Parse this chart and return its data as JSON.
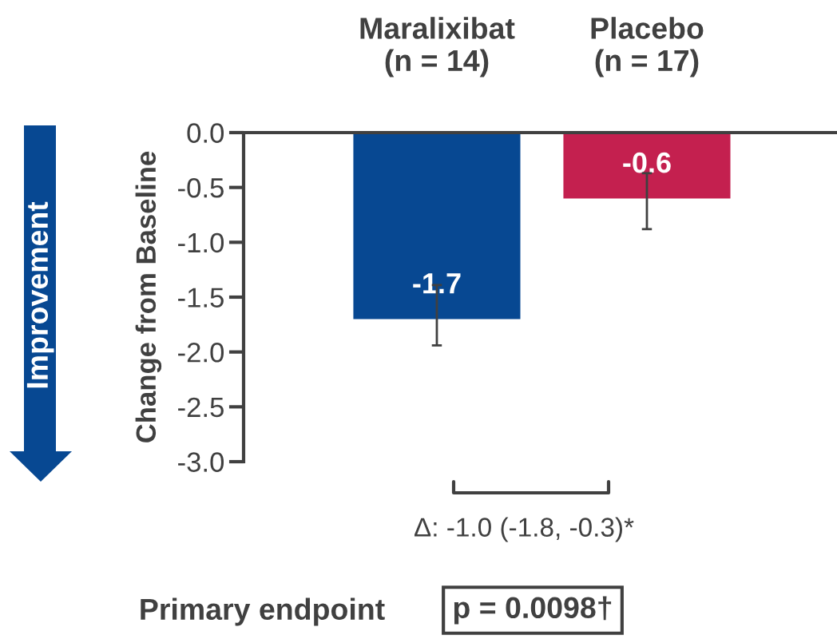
{
  "chart_data": {
    "type": "bar",
    "categories": [
      "Maralixibat\n(n = 14)",
      "Placebo\n(n = 17)"
    ],
    "values": [
      -1.7,
      -0.6
    ],
    "colors": [
      "#074892",
      "#c4204f"
    ],
    "errors": [
      [
        -1.94,
        -1.39
      ],
      [
        -0.88,
        -0.37
      ]
    ],
    "ylabel": "Change from Baseline",
    "ylim": [
      -3.0,
      0.0
    ],
    "yticks": [
      {
        "value": -3,
        "label": "-3.0"
      },
      -2.5,
      {
        "value": -2,
        "label": "-2.0"
      },
      -1.5,
      {
        "value": -1,
        "label": "-1.0"
      },
      -0.5,
      {
        "value": 0,
        "label": "0.0"
      }
    ],
    "data_labels": true,
    "annotations": [
      "Improvement",
      "Δ: -1.0 (-1.8, -0.3)*",
      "Primary endpoint",
      "p = 0.0098†"
    ]
  }
}
